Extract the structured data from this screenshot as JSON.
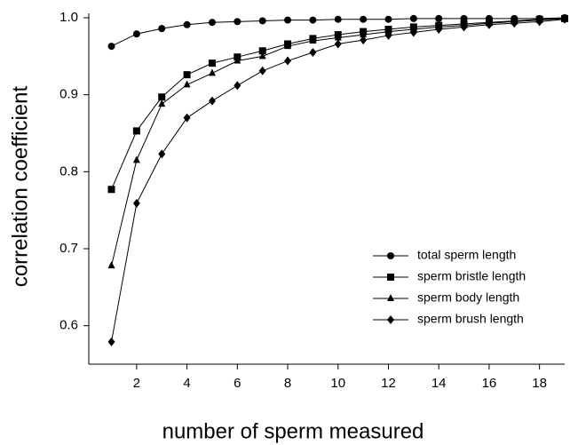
{
  "chart_data": {
    "type": "line",
    "xlabel": "number of sperm measured",
    "ylabel": "correlation coefficient",
    "x": [
      1,
      2,
      3,
      4,
      5,
      6,
      7,
      8,
      9,
      10,
      11,
      12,
      13,
      14,
      15,
      16,
      17,
      18,
      19
    ],
    "series": [
      {
        "name": "total sperm length",
        "color": "#000000",
        "marker": "circle",
        "values": [
          0.963,
          0.979,
          0.986,
          0.991,
          0.994,
          0.995,
          0.996,
          0.997,
          0.997,
          0.998,
          0.998,
          0.998,
          0.999,
          0.999,
          0.999,
          0.999,
          0.999,
          0.999,
          1.0
        ]
      },
      {
        "name": "sperm bristle length",
        "color": "#000000",
        "marker": "square",
        "values": [
          0.777,
          0.853,
          0.897,
          0.926,
          0.941,
          0.949,
          0.957,
          0.966,
          0.973,
          0.978,
          0.982,
          0.985,
          0.988,
          0.99,
          0.992,
          0.994,
          0.996,
          0.998,
          0.999
        ]
      },
      {
        "name": "sperm body length",
        "color": "#000000",
        "marker": "triangle",
        "values": [
          0.678,
          0.815,
          0.888,
          0.913,
          0.928,
          0.944,
          0.95,
          0.963,
          0.97,
          0.974,
          0.978,
          0.982,
          0.985,
          0.988,
          0.99,
          0.993,
          0.995,
          0.997,
          0.999
        ]
      },
      {
        "name": "sperm brush length",
        "color": "#000000",
        "marker": "diamond",
        "values": [
          0.579,
          0.759,
          0.823,
          0.87,
          0.892,
          0.912,
          0.931,
          0.944,
          0.955,
          0.966,
          0.971,
          0.977,
          0.981,
          0.985,
          0.988,
          0.991,
          0.993,
          0.995,
          0.998
        ]
      }
    ],
    "xlim": [
      0.1,
      19
    ],
    "xticks": [
      2,
      4,
      6,
      8,
      10,
      12,
      14,
      16,
      18
    ],
    "ylim": [
      0.55,
      1.0
    ],
    "yticks": [
      {
        "value": 0.6,
        "label": "0.6"
      },
      {
        "value": 0.7,
        "label": "0.7"
      },
      {
        "value": 0.8,
        "label": "0.8"
      },
      {
        "value": 0.9,
        "label": "0.9"
      },
      {
        "value": 1.0,
        "label": "1.0"
      }
    ],
    "legend": "lower right"
  }
}
